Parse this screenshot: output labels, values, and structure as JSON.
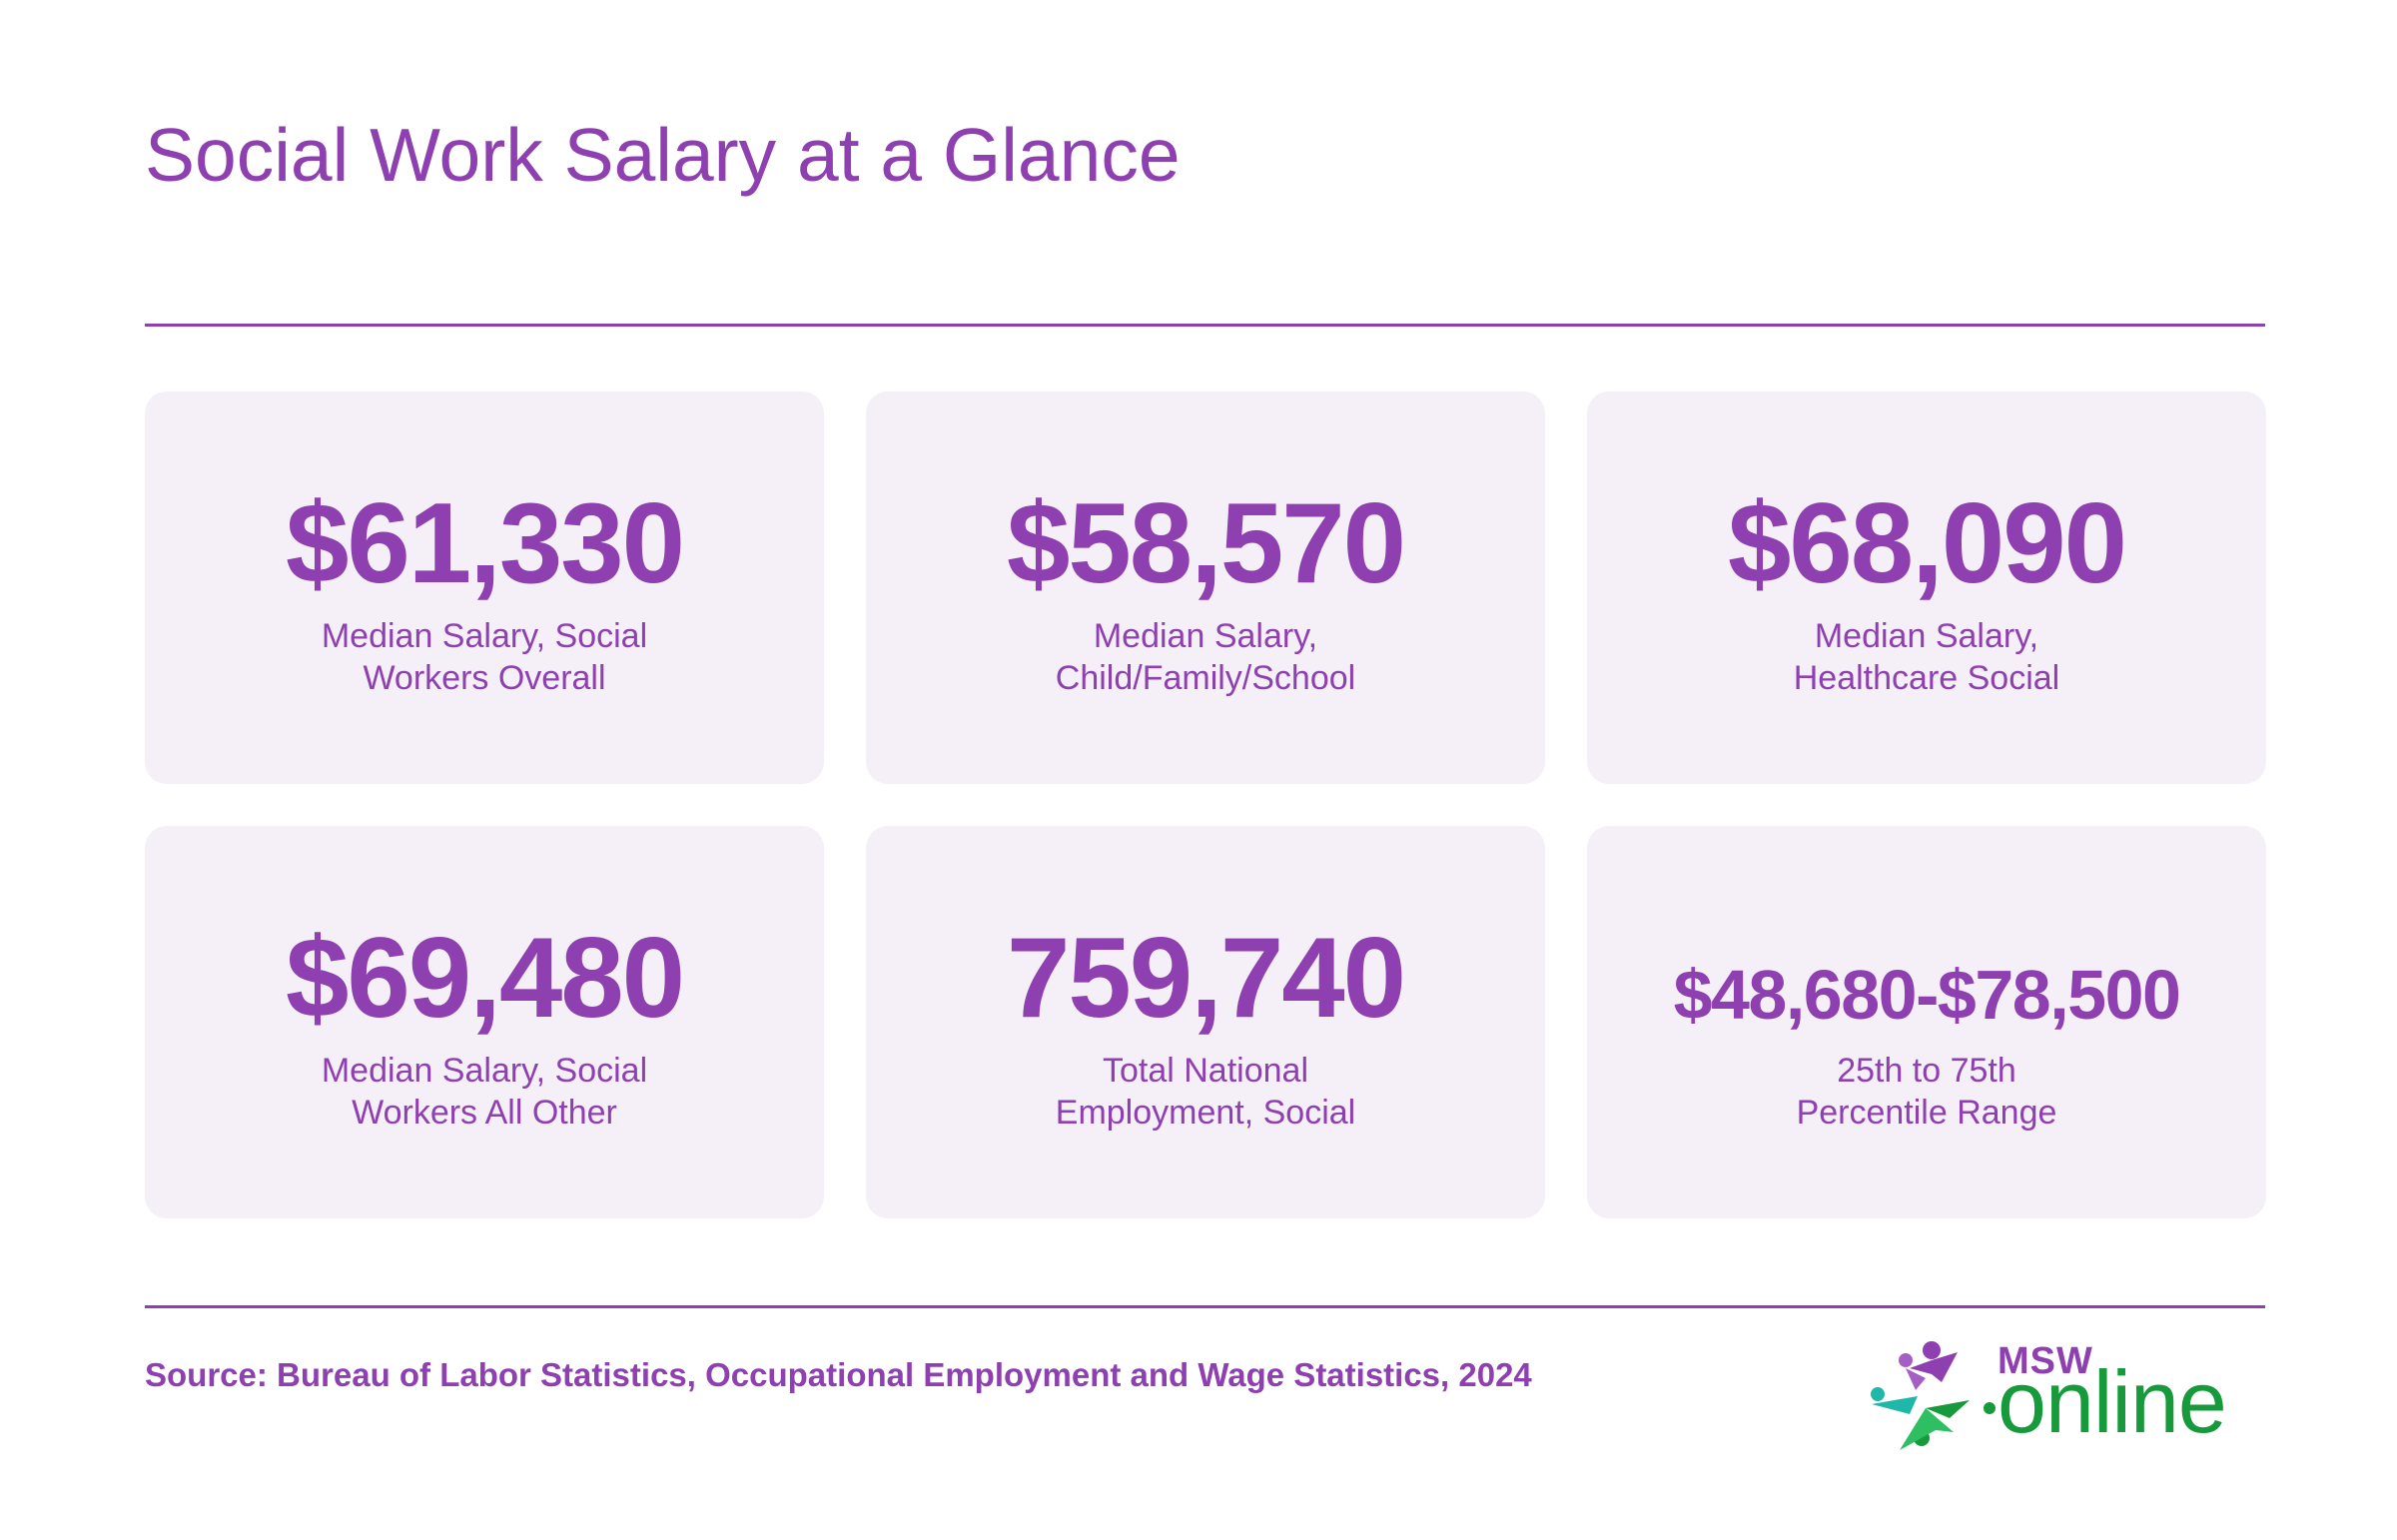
{
  "title": "Social Work Salary at a Glance",
  "cards": [
    {
      "value": "$61,330",
      "label_line1": "Median Salary, Social",
      "label_line2": "Workers Overall"
    },
    {
      "value": "$58,570",
      "label_line1": "Median Salary,",
      "label_line2": "Child/Family/School"
    },
    {
      "value": "$68,090",
      "label_line1": "Median Salary,",
      "label_line2": "Healthcare Social"
    },
    {
      "value": "$69,480",
      "label_line1": "Median Salary, Social",
      "label_line2": "Workers All Other"
    },
    {
      "value": "759,740",
      "label_line1": "Total National",
      "label_line2": "Employment, Social"
    },
    {
      "value": "$48,680-$78,500",
      "label_line1": "25th to 75th",
      "label_line2": "Percentile Range"
    }
  ],
  "source": "Source: Bureau of Labor Statistics, Occupational Employment and Wage Statistics, 2024",
  "logo": {
    "top_text": "MSW",
    "main_text": "online",
    "colors": {
      "purple": "#8e3fb0",
      "green": "#179a3c",
      "teal": "#1fb8a8"
    }
  },
  "colors": {
    "accent": "#8e3fb0",
    "card_background": "#f5f0f8"
  }
}
